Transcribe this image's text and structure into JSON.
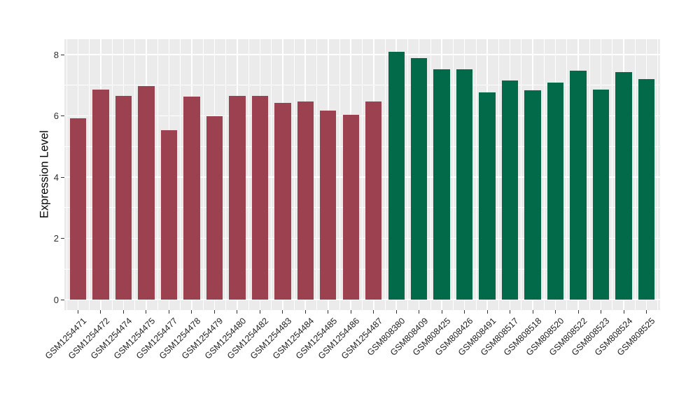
{
  "figure": {
    "background": "#FFFFFF",
    "panel_background": "#EBEBEB",
    "grid_color": "#FFFFFF",
    "tick_mark_color": "#333333",
    "axis_text_color": "#1F1F1F",
    "axis_title_color": "#000000"
  },
  "chart_data": {
    "type": "bar",
    "title": "",
    "xlabel": "",
    "ylabel": "Expression Level",
    "ylim": [
      0,
      8.5
    ],
    "yticks": [
      0,
      2,
      4,
      6,
      8
    ],
    "minor_yticks": [
      1,
      3,
      5,
      7
    ],
    "grid": "on",
    "legend_position": "none",
    "group_colors": {
      "groupA": "#9C4150",
      "groupB": "#026A49"
    },
    "bars": [
      {
        "label": "GSM1254471",
        "value": 5.92,
        "group": "groupA"
      },
      {
        "label": "GSM1254472",
        "value": 6.86,
        "group": "groupA"
      },
      {
        "label": "GSM1254474",
        "value": 6.65,
        "group": "groupA"
      },
      {
        "label": "GSM1254475",
        "value": 6.97,
        "group": "groupA"
      },
      {
        "label": "GSM1254477",
        "value": 5.53,
        "group": "groupA"
      },
      {
        "label": "GSM1254478",
        "value": 6.63,
        "group": "groupA"
      },
      {
        "label": "GSM1254479",
        "value": 6.0,
        "group": "groupA"
      },
      {
        "label": "GSM1254480",
        "value": 6.66,
        "group": "groupA"
      },
      {
        "label": "GSM1254482",
        "value": 6.65,
        "group": "groupA"
      },
      {
        "label": "GSM1254483",
        "value": 6.42,
        "group": "groupA"
      },
      {
        "label": "GSM1254484",
        "value": 6.46,
        "group": "groupA"
      },
      {
        "label": "GSM1254485",
        "value": 6.18,
        "group": "groupA"
      },
      {
        "label": "GSM1254486",
        "value": 6.03,
        "group": "groupA"
      },
      {
        "label": "GSM1254487",
        "value": 6.46,
        "group": "groupA"
      },
      {
        "label": "GSM808380",
        "value": 8.09,
        "group": "groupB"
      },
      {
        "label": "GSM808409",
        "value": 7.88,
        "group": "groupB"
      },
      {
        "label": "GSM808425",
        "value": 7.52,
        "group": "groupB"
      },
      {
        "label": "GSM808426",
        "value": 7.52,
        "group": "groupB"
      },
      {
        "label": "GSM808491",
        "value": 6.77,
        "group": "groupB"
      },
      {
        "label": "GSM808517",
        "value": 7.15,
        "group": "groupB"
      },
      {
        "label": "GSM808518",
        "value": 6.83,
        "group": "groupB"
      },
      {
        "label": "GSM808520",
        "value": 7.09,
        "group": "groupB"
      },
      {
        "label": "GSM808522",
        "value": 7.47,
        "group": "groupB"
      },
      {
        "label": "GSM808523",
        "value": 6.86,
        "group": "groupB"
      },
      {
        "label": "GSM808524",
        "value": 7.43,
        "group": "groupB"
      },
      {
        "label": "GSM808525",
        "value": 7.2,
        "group": "groupB"
      }
    ]
  }
}
